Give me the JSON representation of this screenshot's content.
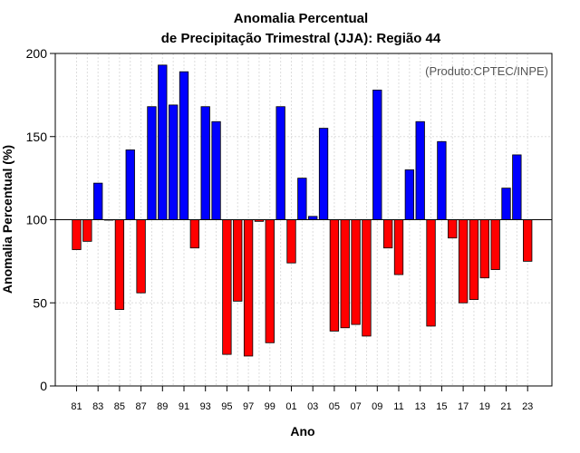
{
  "chart_data": {
    "type": "bar",
    "title_line1": "Anomalia Percentual",
    "title_line2": "de Precipitação Trimestral (JJA): Região 44",
    "xlabel": "Ano",
    "ylabel": "Anomalia Percentual (%)",
    "annotation": "(Produto:CPTEC/INPE)",
    "ylim": [
      0,
      200
    ],
    "yticks": [
      "0",
      "50",
      "100",
      "150",
      "200"
    ],
    "baseline": 100,
    "years": [
      1981,
      1982,
      1983,
      1984,
      1985,
      1986,
      1987,
      1988,
      1989,
      1990,
      1991,
      1992,
      1993,
      1994,
      1995,
      1996,
      1997,
      1998,
      1999,
      2000,
      2001,
      2002,
      2003,
      2004,
      2005,
      2006,
      2007,
      2008,
      2009,
      2010,
      2011,
      2012,
      2013,
      2014,
      2015,
      2016,
      2017,
      2018,
      2019,
      2020,
      2021,
      2022,
      2023
    ],
    "xtick_labels": [
      "81",
      "83",
      "85",
      "87",
      "89",
      "91",
      "93",
      "95",
      "97",
      "99",
      "01",
      "03",
      "05",
      "07",
      "09",
      "11",
      "13",
      "15",
      "17",
      "19",
      "21",
      "23"
    ],
    "values": [
      82,
      87,
      122,
      100,
      46,
      142,
      56,
      168,
      193,
      169,
      189,
      83,
      168,
      159,
      19,
      51,
      18,
      99,
      26,
      168,
      74,
      125,
      102,
      155,
      33,
      35,
      37,
      30,
      178,
      83,
      67,
      130,
      159,
      36,
      147,
      89,
      50,
      52,
      65,
      70,
      119,
      139,
      75
    ],
    "colors": {
      "above": "#0000ff",
      "below": "#ff0000",
      "grid": "#dddddd",
      "frame": "#000000"
    }
  }
}
